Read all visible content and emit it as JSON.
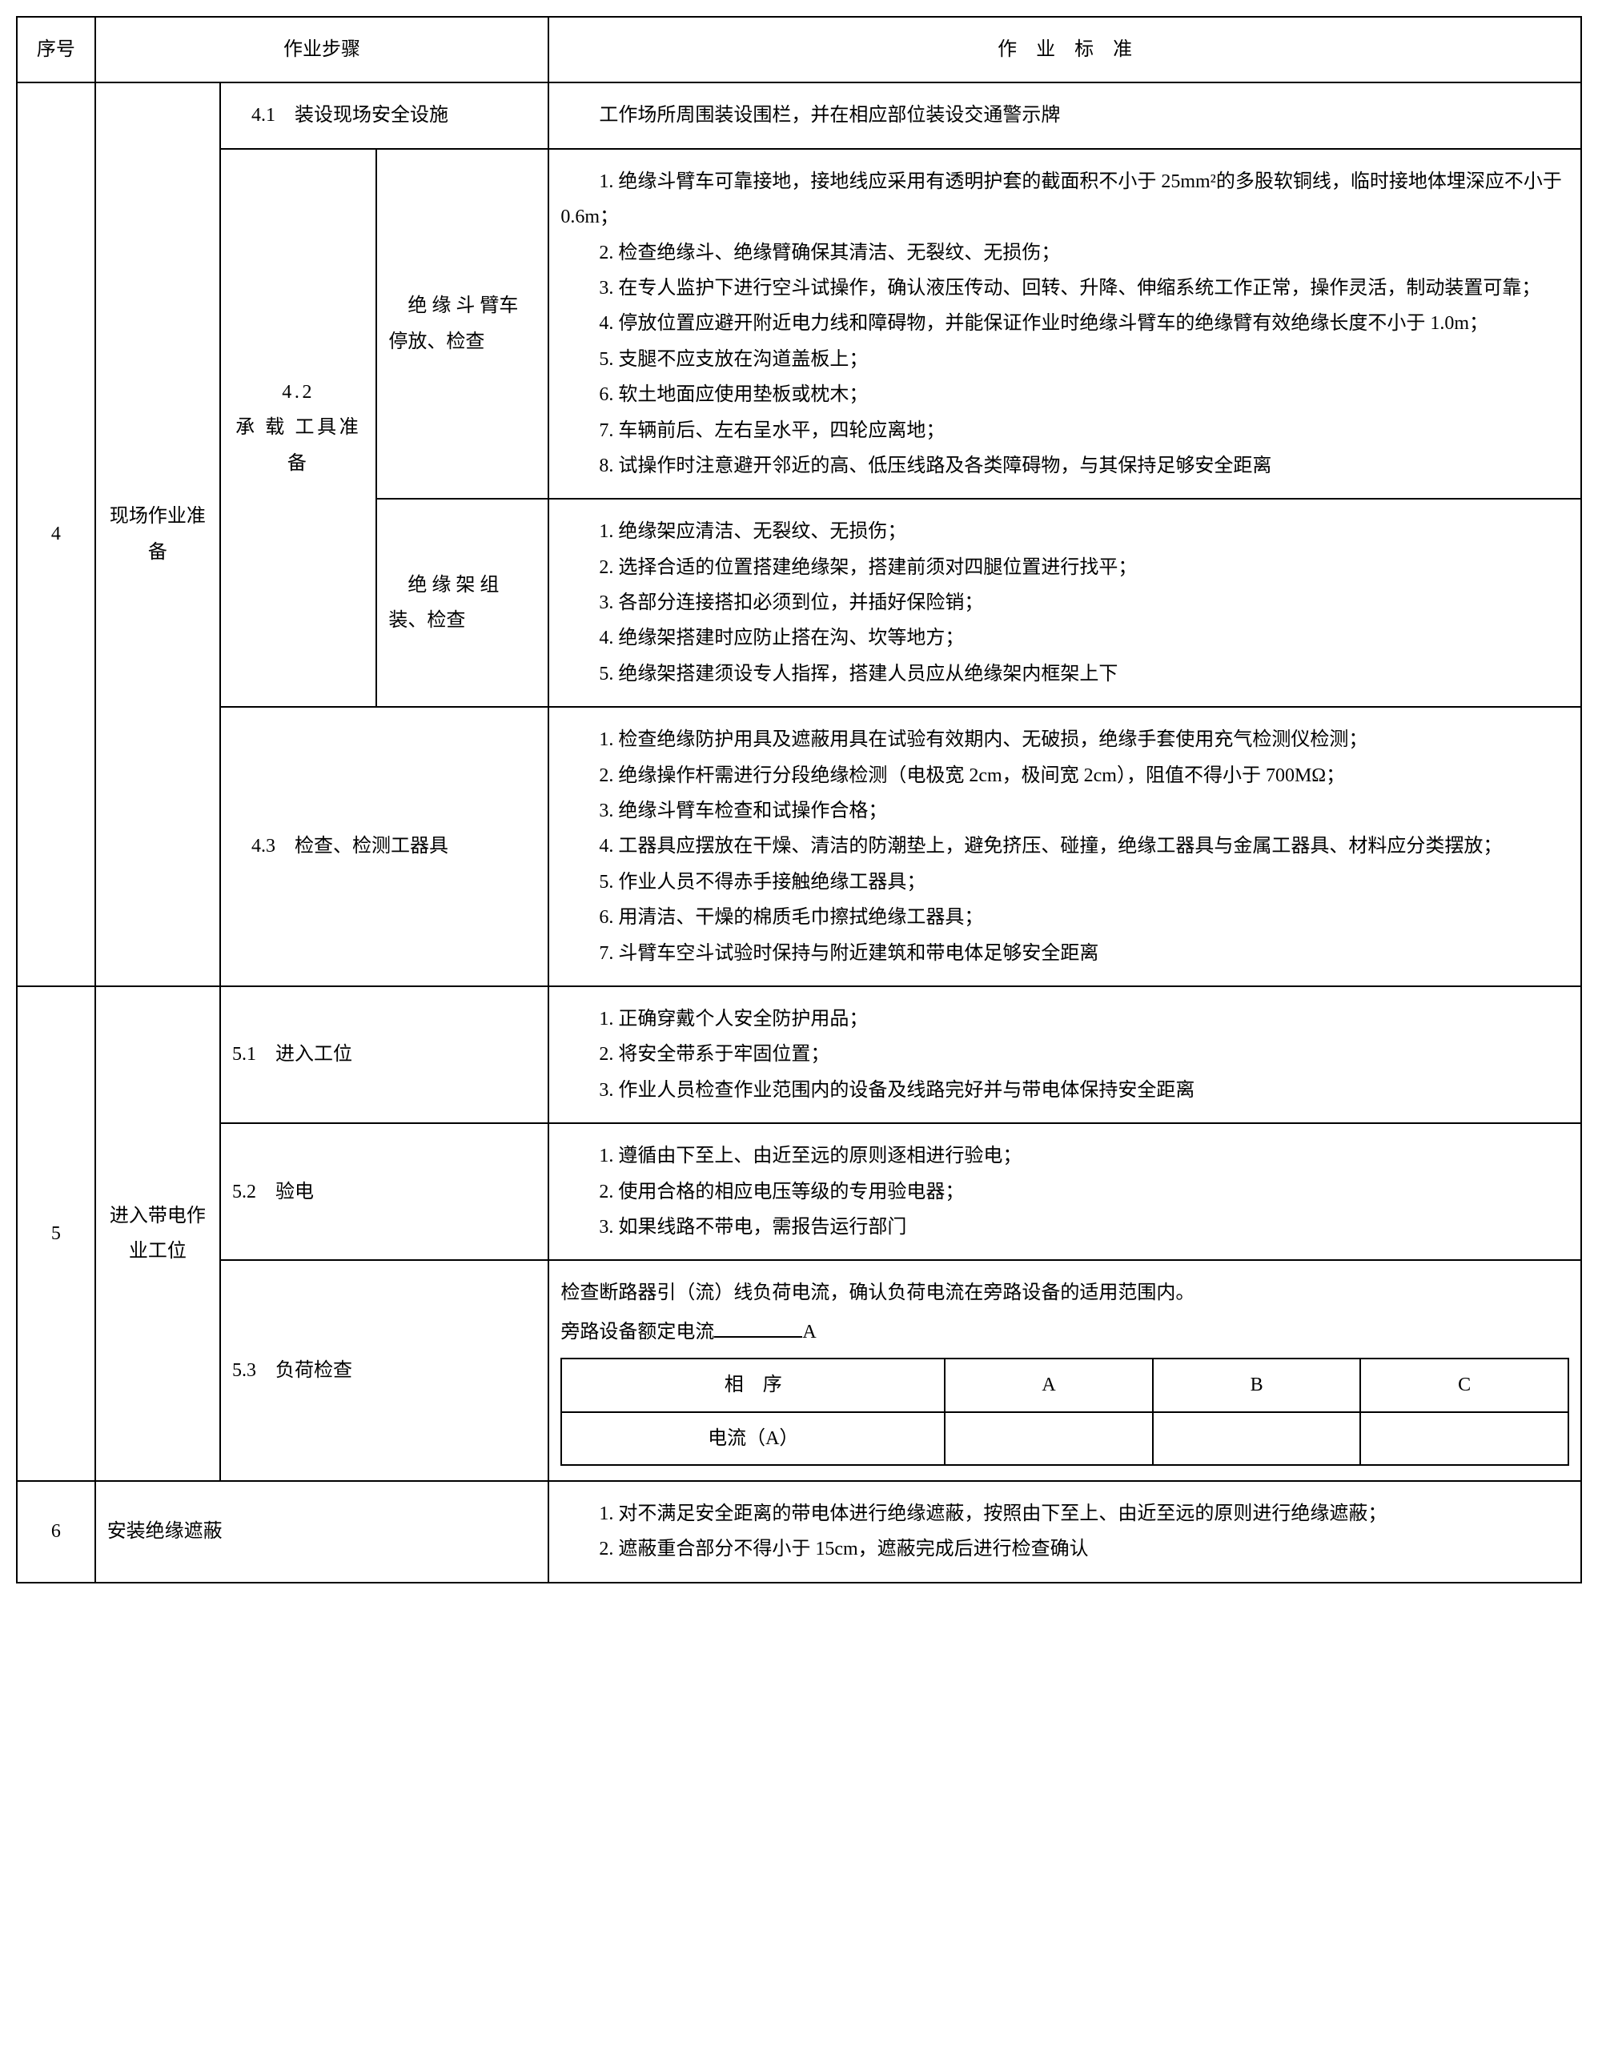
{
  "headers": {
    "seq": "序号",
    "steps": "作业步骤",
    "standard": "作　业　标　准"
  },
  "rows": {
    "r4": {
      "seq": "4",
      "step1": "现场作业准备",
      "s41": {
        "label": "　4.1　装设现场安全设施",
        "standard": "工作场所周围装设围栏，并在相应部位装设交通警示牌"
      },
      "s42": {
        "label1": "4.2",
        "label2": "承 载 工具准备",
        "sub1": {
          "label": "　绝 缘 斗 臂车停放、检查",
          "items": {
            "i1": "1. 绝缘斗臂车可靠接地，接地线应采用有透明护套的截面积不小于 25mm²的多股软铜线，临时接地体埋深应不小于 0.6m；",
            "i2": "2. 检查绝缘斗、绝缘臂确保其清洁、无裂纹、无损伤；",
            "i3": "3. 在专人监护下进行空斗试操作，确认液压传动、回转、升降、伸缩系统工作正常，操作灵活，制动装置可靠；",
            "i4": "4. 停放位置应避开附近电力线和障碍物，并能保证作业时绝缘斗臂车的绝缘臂有效绝缘长度不小于 1.0m；",
            "i5": "5. 支腿不应支放在沟道盖板上；",
            "i6": "6. 软土地面应使用垫板或枕木；",
            "i7": "7. 车辆前后、左右呈水平，四轮应离地；",
            "i8": "8. 试操作时注意避开邻近的高、低压线路及各类障碍物，与其保持足够安全距离"
          }
        },
        "sub2": {
          "label": "　绝 缘 架 组装、检查",
          "items": {
            "i1": "1. 绝缘架应清洁、无裂纹、无损伤；",
            "i2": "2. 选择合适的位置搭建绝缘架，搭建前须对四腿位置进行找平；",
            "i3": "3. 各部分连接搭扣必须到位，并插好保险销；",
            "i4": "4. 绝缘架搭建时应防止搭在沟、坎等地方；",
            "i5": "5. 绝缘架搭建须设专人指挥，搭建人员应从绝缘架内框架上下"
          }
        }
      },
      "s43": {
        "label": "　4.3　检查、检测工器具",
        "items": {
          "i1": "1. 检查绝缘防护用具及遮蔽用具在试验有效期内、无破损，绝缘手套使用充气检测仪检测；",
          "i2": "2. 绝缘操作杆需进行分段绝缘检测（电极宽 2cm，极间宽 2cm），阻值不得小于 700MΩ；",
          "i3": "3. 绝缘斗臂车检查和试操作合格；",
          "i4": "4. 工器具应摆放在干燥、清洁的防潮垫上，避免挤压、碰撞，绝缘工器具与金属工器具、材料应分类摆放；",
          "i5": "5. 作业人员不得赤手接触绝缘工器具；",
          "i6": "6. 用清洁、干燥的棉质毛巾擦拭绝缘工器具；",
          "i7": "7. 斗臂车空斗试验时保持与附近建筑和带电体足够安全距离"
        }
      }
    },
    "r5": {
      "seq": "5",
      "step1": "进入带电作业工位",
      "s51": {
        "label": "5.1　进入工位",
        "items": {
          "i1": "1. 正确穿戴个人安全防护用品；",
          "i2": "2. 将安全带系于牢固位置；",
          "i3": "3. 作业人员检查作业范围内的设备及线路完好并与带电体保持安全距离"
        }
      },
      "s52": {
        "label": "5.2　验电",
        "items": {
          "i1": "1. 遵循由下至上、由近至远的原则逐相进行验电；",
          "i2": "2. 使用合格的相应电压等级的专用验电器；",
          "i3": "3. 如果线路不带电，需报告运行部门"
        }
      },
      "s53": {
        "label": "5.3　负荷检查",
        "intro1": "检查断路器引（流）线负荷电流，确认负荷电流在旁路设备的适用范围内。",
        "intro2_prefix": "旁路设备额定电流",
        "intro2_suffix": "A",
        "inner": {
          "h1": "相　序",
          "hA": "A",
          "hB": "B",
          "hC": "C",
          "r2c1": "电流（A）"
        }
      }
    },
    "r6": {
      "seq": "6",
      "step1": "安装绝缘遮蔽",
      "items": {
        "i1": "1. 对不满足安全距离的带电体进行绝缘遮蔽，按照由下至上、由近至远的原则进行绝缘遮蔽；",
        "i2": "2. 遮蔽重合部分不得小于 15cm，遮蔽完成后进行检查确认"
      }
    }
  }
}
